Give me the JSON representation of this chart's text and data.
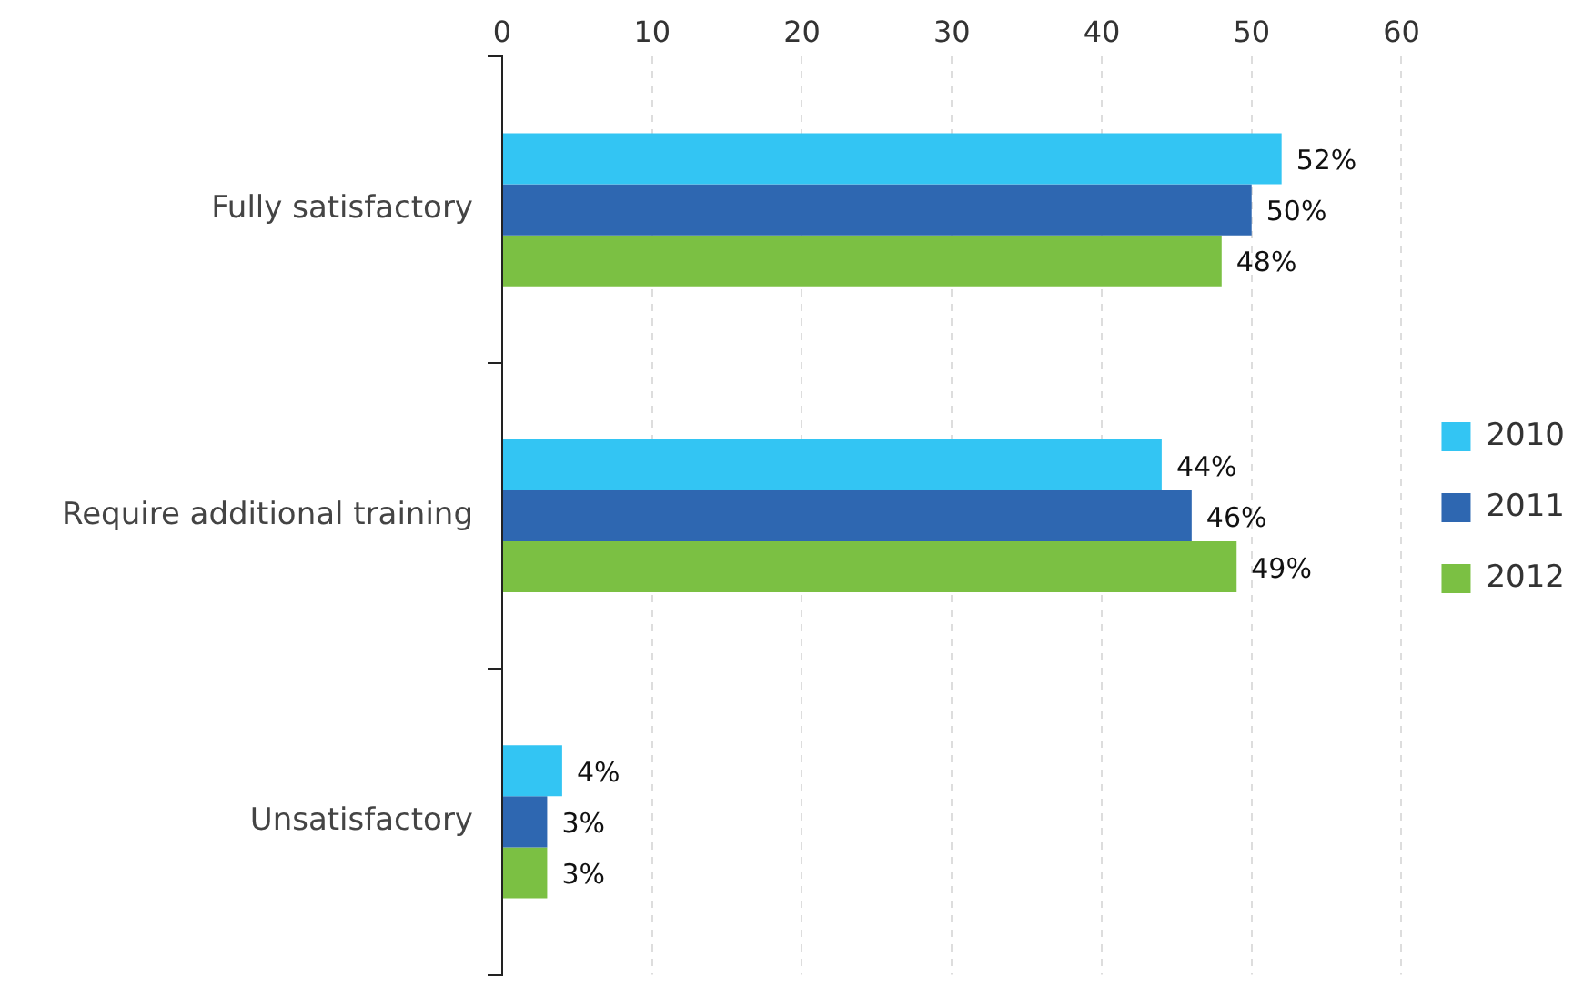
{
  "chart_data": {
    "type": "bar",
    "orientation": "horizontal",
    "categories": [
      "Fully satisfactory",
      "Require additional training",
      "Unsatisfactory"
    ],
    "series": [
      {
        "name": "2010",
        "color": "#33c5f3",
        "values": [
          52,
          44,
          4
        ],
        "value_labels": [
          "52%",
          "44%",
          "4%"
        ]
      },
      {
        "name": "2011",
        "color": "#2e67b1",
        "values": [
          50,
          46,
          3
        ],
        "value_labels": [
          "50%",
          "46%",
          "3%"
        ]
      },
      {
        "name": "2012",
        "color": "#7bc043",
        "values": [
          48,
          49,
          3
        ],
        "value_labels": [
          "48%",
          "49%",
          "3%"
        ]
      }
    ],
    "xlim": [
      0,
      60
    ],
    "xticks": [
      0,
      10,
      20,
      30,
      40,
      50,
      60
    ],
    "grid": "x",
    "legend": "right"
  }
}
